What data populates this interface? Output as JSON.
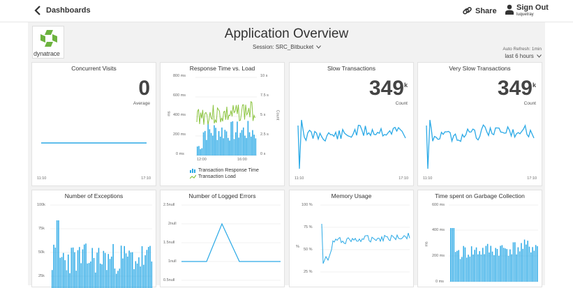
{
  "header": {
    "back_label": "Dashboards",
    "share_label": "Share",
    "signout_label": "Sign Out",
    "user": "luquetray"
  },
  "logo": {
    "text": "dynatrace"
  },
  "page": {
    "title": "Application Overview",
    "session": "Session:  SRC_Bitbucket",
    "auto_refresh": "Auto Refresh: 1min",
    "range": "last 6 hours"
  },
  "panels": {
    "concurrent": {
      "title": "Concurrent Visits",
      "value": "0",
      "sublabel": "Average",
      "x_start": "11:10",
      "x_end": "17:10"
    },
    "response": {
      "title": "Response Time vs. Load",
      "y_left_ticks": [
        "800 ms",
        "600 ms",
        "400 ms",
        "200 ms",
        "0 ms"
      ],
      "y_right_ticks": [
        "10 s",
        "7.5 s",
        "5 s",
        "2.5 s",
        "0 s"
      ],
      "y_left_label": "ms",
      "y_right_label": "Count",
      "x_ticks": [
        "12:00",
        "16:00"
      ],
      "legend_bar": "Transaction Response Time",
      "legend_line": "Transaction Load"
    },
    "slow": {
      "title": "Slow Transactions",
      "value": "349",
      "unit": "k",
      "sublabel": "Count",
      "x_start": "11:10",
      "x_end": "17:10"
    },
    "veryslow": {
      "title": "Very Slow Transactions",
      "value": "349",
      "unit": "k",
      "sublabel": "Count",
      "x_start": "11:10",
      "x_end": "17:10"
    },
    "exceptions": {
      "title": "Number of Exceptions",
      "y_ticks": [
        "100k",
        "75k",
        "50k",
        "25k"
      ]
    },
    "errors": {
      "title": "Number of Logged Errors",
      "y_ticks": [
        "2.5null",
        "2null",
        "1.5null",
        "1null",
        "0.5null"
      ]
    },
    "memory": {
      "title": "Memory Usage",
      "y_ticks": [
        "100 %",
        "75 %",
        "50 %",
        "25 %"
      ],
      "y_label": "%"
    },
    "gc": {
      "title": "Time spent on Garbage Collection",
      "y_ticks": [
        "600 ms",
        "400 ms",
        "200 ms",
        "0 ms"
      ],
      "y_label": "ms"
    }
  },
  "colors": {
    "series_blue": "#2aa9e6",
    "load_green": "#8bc43f",
    "logo_green": "#6cb33e"
  }
}
